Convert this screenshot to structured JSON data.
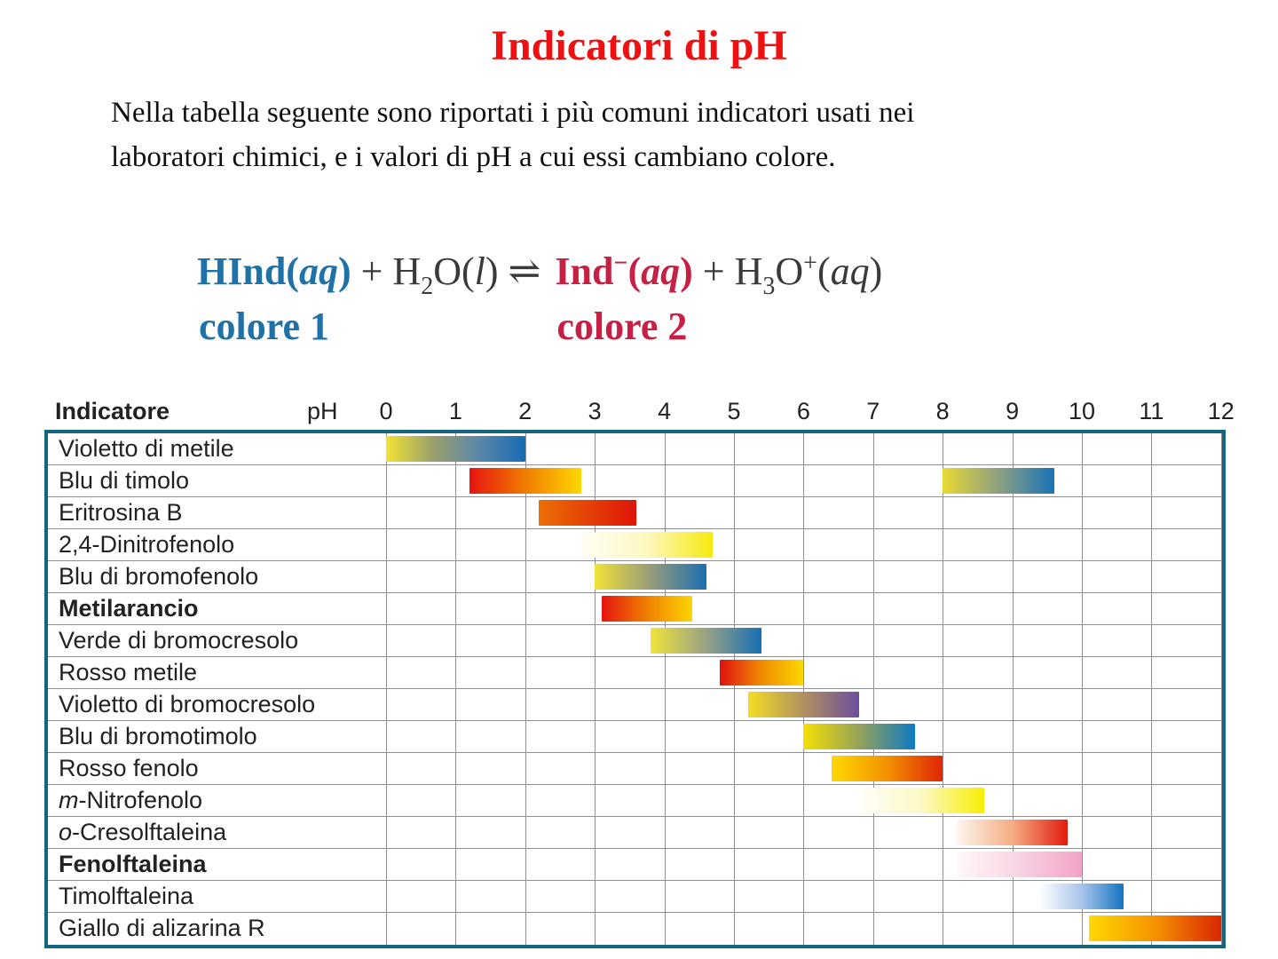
{
  "page": {
    "title": "Indicatori di pH",
    "intro_line1": "Nella tabella seguente sono riportati i più comuni indicatori usati nei",
    "intro_line2": "laboratori chimici, e i valori di pH a cui essi cambiano colore."
  },
  "equation": {
    "groups": [
      {
        "label": "colore 1",
        "label_style": "blue",
        "segments": [
          {
            "t": "HInd(",
            "s": "bb"
          },
          {
            "t": "aq",
            "s": "bbi"
          },
          {
            "t": ")",
            "s": "bb"
          },
          {
            "t": " + H",
            "s": "d"
          },
          {
            "t": "2",
            "s": "dsub"
          },
          {
            "t": "O(",
            "s": "d"
          },
          {
            "t": "l",
            "s": "di"
          },
          {
            "t": ")",
            "s": "d"
          },
          {
            "t": " ⇌",
            "s": "d"
          }
        ]
      },
      {
        "label": "colore 2",
        "label_style": "red",
        "segments": [
          {
            "t": "Ind",
            "s": "rb"
          },
          {
            "t": "−",
            "s": "rbsup"
          },
          {
            "t": "(",
            "s": "rb"
          },
          {
            "t": "aq",
            "s": "rbi"
          },
          {
            "t": ")",
            "s": "rb"
          },
          {
            "t": " + H",
            "s": "d"
          },
          {
            "t": "3",
            "s": "dsub"
          },
          {
            "t": "O",
            "s": "d"
          },
          {
            "t": "+",
            "s": "dsup"
          },
          {
            "t": "(",
            "s": "d"
          },
          {
            "t": "aq",
            "s": "di"
          },
          {
            "t": ")",
            "s": "d"
          }
        ]
      }
    ]
  },
  "colors": {
    "title_red": "#ee1111",
    "equation_blue": "#1f72a8",
    "equation_red": "#c62045",
    "table_border_teal": "#15657f",
    "grid_gray": "#8f8f8f"
  },
  "chart_data": {
    "type": "range-bars",
    "title": "Indicatore / pH",
    "xlabel": "pH",
    "x_range": [
      0,
      12
    ],
    "x_ticks": [
      0,
      1,
      2,
      3,
      4,
      5,
      6,
      7,
      8,
      9,
      10,
      11,
      12
    ],
    "grid": true,
    "header_indicator": "Indicatore",
    "header_ph": "pH",
    "rows": [
      {
        "label": "Violetto di metile",
        "bold": false,
        "ranges": [
          {
            "from": 0.0,
            "to": 2.0,
            "colors": [
              "#f2e234",
              "#9aa06c",
              "#5b87a8",
              "#156cb4"
            ]
          }
        ]
      },
      {
        "label": "Blu di timolo",
        "bold": false,
        "ranges": [
          {
            "from": 1.2,
            "to": 2.8,
            "colors": [
              "#e81410",
              "#f07c00",
              "#ffd800"
            ]
          },
          {
            "from": 8.0,
            "to": 9.6,
            "colors": [
              "#e8d832",
              "#8ca081",
              "#1973b8"
            ]
          }
        ]
      },
      {
        "label": "Eritrosina B",
        "bold": false,
        "ranges": [
          {
            "from": 2.2,
            "to": 3.6,
            "colors": [
              "#ec6f05",
              "#de1509"
            ]
          }
        ]
      },
      {
        "label": "2,4-Dinitrofenolo",
        "bold": false,
        "ranges": [
          {
            "from": 2.8,
            "to": 4.7,
            "colors": [
              "#fffdf4",
              "#fdf7c0",
              "#f6e90e"
            ]
          }
        ]
      },
      {
        "label": "Blu di bromofenolo",
        "bold": false,
        "ranges": [
          {
            "from": 3.0,
            "to": 4.6,
            "colors": [
              "#f1e138",
              "#979c79",
              "#1c70b2"
            ]
          }
        ]
      },
      {
        "label": "Metilarancio",
        "bold": true,
        "ranges": [
          {
            "from": 3.1,
            "to": 4.4,
            "colors": [
              "#e61511",
              "#ef8000",
              "#fcd404"
            ]
          }
        ]
      },
      {
        "label": "Verde di bromocresolo",
        "bold": false,
        "ranges": [
          {
            "from": 3.8,
            "to": 5.4,
            "colors": [
              "#f0e33a",
              "#98a285",
              "#1870b5"
            ]
          }
        ]
      },
      {
        "label": "Rosso metile",
        "bold": false,
        "ranges": [
          {
            "from": 4.8,
            "to": 6.0,
            "colors": [
              "#e11212",
              "#ee8a00",
              "#fbd800"
            ]
          }
        ]
      },
      {
        "label": "Violetto di bromocresolo",
        "bold": false,
        "ranges": [
          {
            "from": 5.2,
            "to": 6.8,
            "colors": [
              "#f4dd24",
              "#b09060",
              "#6d4e9d"
            ]
          }
        ]
      },
      {
        "label": "Blu di bromotimolo",
        "bold": false,
        "ranges": [
          {
            "from": 6.0,
            "to": 7.6,
            "colors": [
              "#f4e002",
              "#95a259",
              "#0e7ac3"
            ]
          }
        ]
      },
      {
        "label": "Rosso fenolo",
        "bold": false,
        "ranges": [
          {
            "from": 6.4,
            "to": 8.0,
            "colors": [
              "#fed801",
              "#f29100",
              "#e02606"
            ]
          }
        ]
      },
      {
        "label": "m-Nitrofenolo",
        "bold": false,
        "italic_prefix": "m",
        "ranges": [
          {
            "from": 6.8,
            "to": 8.6,
            "colors": [
              "#fffef8",
              "#fcf8c4",
              "#f7ee02"
            ]
          }
        ]
      },
      {
        "label": "o-Cresolftaleina",
        "bold": false,
        "italic_prefix": "o",
        "ranges": [
          {
            "from": 8.2,
            "to": 9.8,
            "colors": [
              "#fdf6ee",
              "#f4ad83",
              "#e21b0c"
            ]
          }
        ]
      },
      {
        "label": "Fenolftaleina",
        "bold": true,
        "ranges": [
          {
            "from": 8.2,
            "to": 10.0,
            "colors": [
              "#fff8fb",
              "#f8d3e4",
              "#f2a2c6"
            ]
          }
        ]
      },
      {
        "label": "Timolftaleina",
        "bold": false,
        "ranges": [
          {
            "from": 9.4,
            "to": 10.6,
            "colors": [
              "#fdfeff",
              "#a8c4ea",
              "#1375c0"
            ]
          }
        ]
      },
      {
        "label": "Giallo di alizarina R",
        "bold": false,
        "ranges": [
          {
            "from": 10.1,
            "to": 12.0,
            "colors": [
              "#fed801",
              "#f59200",
              "#da2603"
            ]
          }
        ]
      }
    ]
  }
}
